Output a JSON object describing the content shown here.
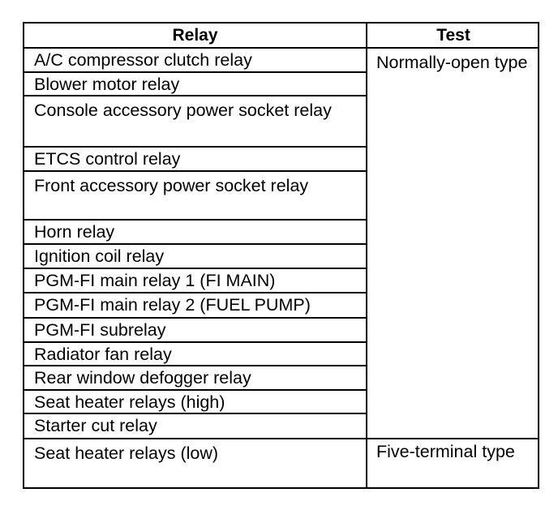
{
  "table": {
    "headers": {
      "relay": "Relay",
      "test": "Test"
    },
    "rows": [
      "A/C compressor clutch relay",
      "Blower motor relay",
      "Console accessory power socket relay",
      "ETCS control relay",
      "Front accessory power socket relay",
      "Horn relay",
      "Ignition coil relay",
      "PGM-FI main relay 1 (FI MAIN)",
      "PGM-FI main relay 2 (FUEL PUMP)",
      "PGM-FI subrelay",
      "Radiator fan relay",
      "Rear window defogger relay",
      "Seat heater relays (high)",
      "Starter cut relay",
      "Seat heater relays (low)"
    ],
    "tests": [
      "Normally-open type",
      "Five-terminal type"
    ]
  }
}
